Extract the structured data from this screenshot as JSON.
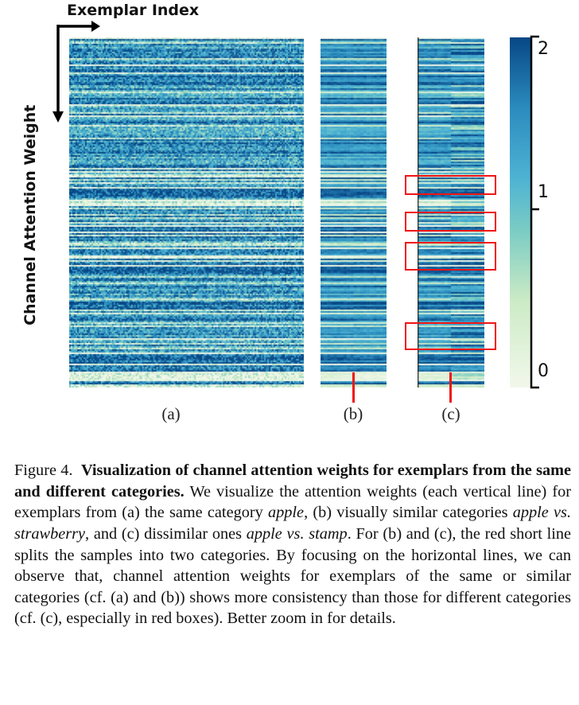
{
  "figure": {
    "x_axis_label": "Exemplar Index",
    "y_axis_label": "Channel Attention Weight",
    "panels": [
      {
        "label": "(a)",
        "description_key": "same category"
      },
      {
        "label": "(b)"
      },
      {
        "label": "(c)"
      }
    ],
    "colorbar": {
      "ticks": [
        "2",
        "1",
        "0"
      ],
      "min": 0,
      "max": 2,
      "colormap": "GnBu",
      "low_color": "#f2f8ec",
      "high_color": "#0b4a8a"
    },
    "highlight_color": "#f01414"
  },
  "caption": {
    "number": "Figure 4.",
    "title": "Visualization of channel attention weights for exemplars from the same and different categories.",
    "t1": " We visualize the attention weights (each vertical line) for exemplars from (a) the same category ",
    "i1": "apple",
    "t2": ", (b) visually similar categories ",
    "i2": "apple vs. strawberry",
    "t3": ", and (c) dissimilar ones ",
    "i3": "apple vs.  stamp",
    "t4": ". For (b) and (c), the red short line splits the samples into two categories. By focusing on the horizontal lines, we can observe that, channel attention weights for exemplars of the same or similar categories (cf. (a) and (b)) shows more consistency than those for different categories (cf. (c), especially in red boxes). Better zoom in for details."
  }
}
